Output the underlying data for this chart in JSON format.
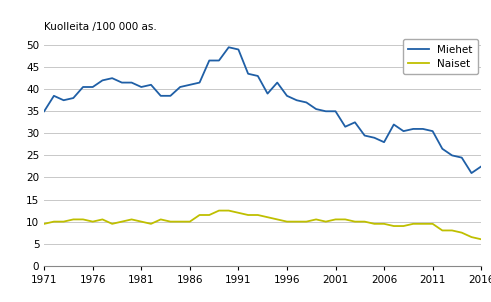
{
  "years": [
    1971,
    1972,
    1973,
    1974,
    1975,
    1976,
    1977,
    1978,
    1979,
    1980,
    1981,
    1982,
    1983,
    1984,
    1985,
    1986,
    1987,
    1988,
    1989,
    1990,
    1991,
    1992,
    1993,
    1994,
    1995,
    1996,
    1997,
    1998,
    1999,
    2000,
    2001,
    2002,
    2003,
    2004,
    2005,
    2006,
    2007,
    2008,
    2009,
    2010,
    2011,
    2012,
    2013,
    2014,
    2015,
    2016
  ],
  "miehet": [
    35.0,
    38.5,
    37.5,
    38.0,
    40.5,
    40.5,
    42.0,
    42.5,
    41.5,
    41.5,
    40.5,
    41.0,
    38.5,
    38.5,
    40.5,
    41.0,
    41.5,
    46.5,
    46.5,
    49.5,
    49.0,
    43.5,
    43.0,
    39.0,
    41.5,
    38.5,
    37.5,
    37.0,
    35.5,
    35.0,
    35.0,
    31.5,
    32.5,
    29.5,
    29.0,
    28.0,
    32.0,
    30.5,
    31.0,
    31.0,
    30.5,
    26.5,
    25.0,
    24.5,
    21.0,
    22.5
  ],
  "naiset": [
    9.5,
    10.0,
    10.0,
    10.5,
    10.5,
    10.0,
    10.5,
    9.5,
    10.0,
    10.5,
    10.0,
    9.5,
    10.5,
    10.0,
    10.0,
    10.0,
    11.5,
    11.5,
    12.5,
    12.5,
    12.0,
    11.5,
    11.5,
    11.0,
    10.5,
    10.0,
    10.0,
    10.0,
    10.5,
    10.0,
    10.5,
    10.5,
    10.0,
    10.0,
    9.5,
    9.5,
    9.0,
    9.0,
    9.5,
    9.5,
    9.5,
    8.0,
    8.0,
    7.5,
    6.5,
    6.0
  ],
  "miehet_color": "#1F5FA6",
  "naiset_color": "#BFBF00",
  "ylabel": "Kuolleita /100 000 as.",
  "xticks": [
    1971,
    1976,
    1981,
    1986,
    1991,
    1996,
    2001,
    2006,
    2011,
    2016
  ],
  "yticks": [
    0,
    5,
    10,
    15,
    20,
    25,
    30,
    35,
    40,
    45,
    50
  ],
  "ylim": [
    0,
    52
  ],
  "xlim": [
    1971,
    2016
  ],
  "legend_miehet": "Miehet",
  "legend_naiset": "Naiset",
  "line_width": 1.3,
  "grid_color": "#c8c8c8",
  "background_color": "#ffffff"
}
